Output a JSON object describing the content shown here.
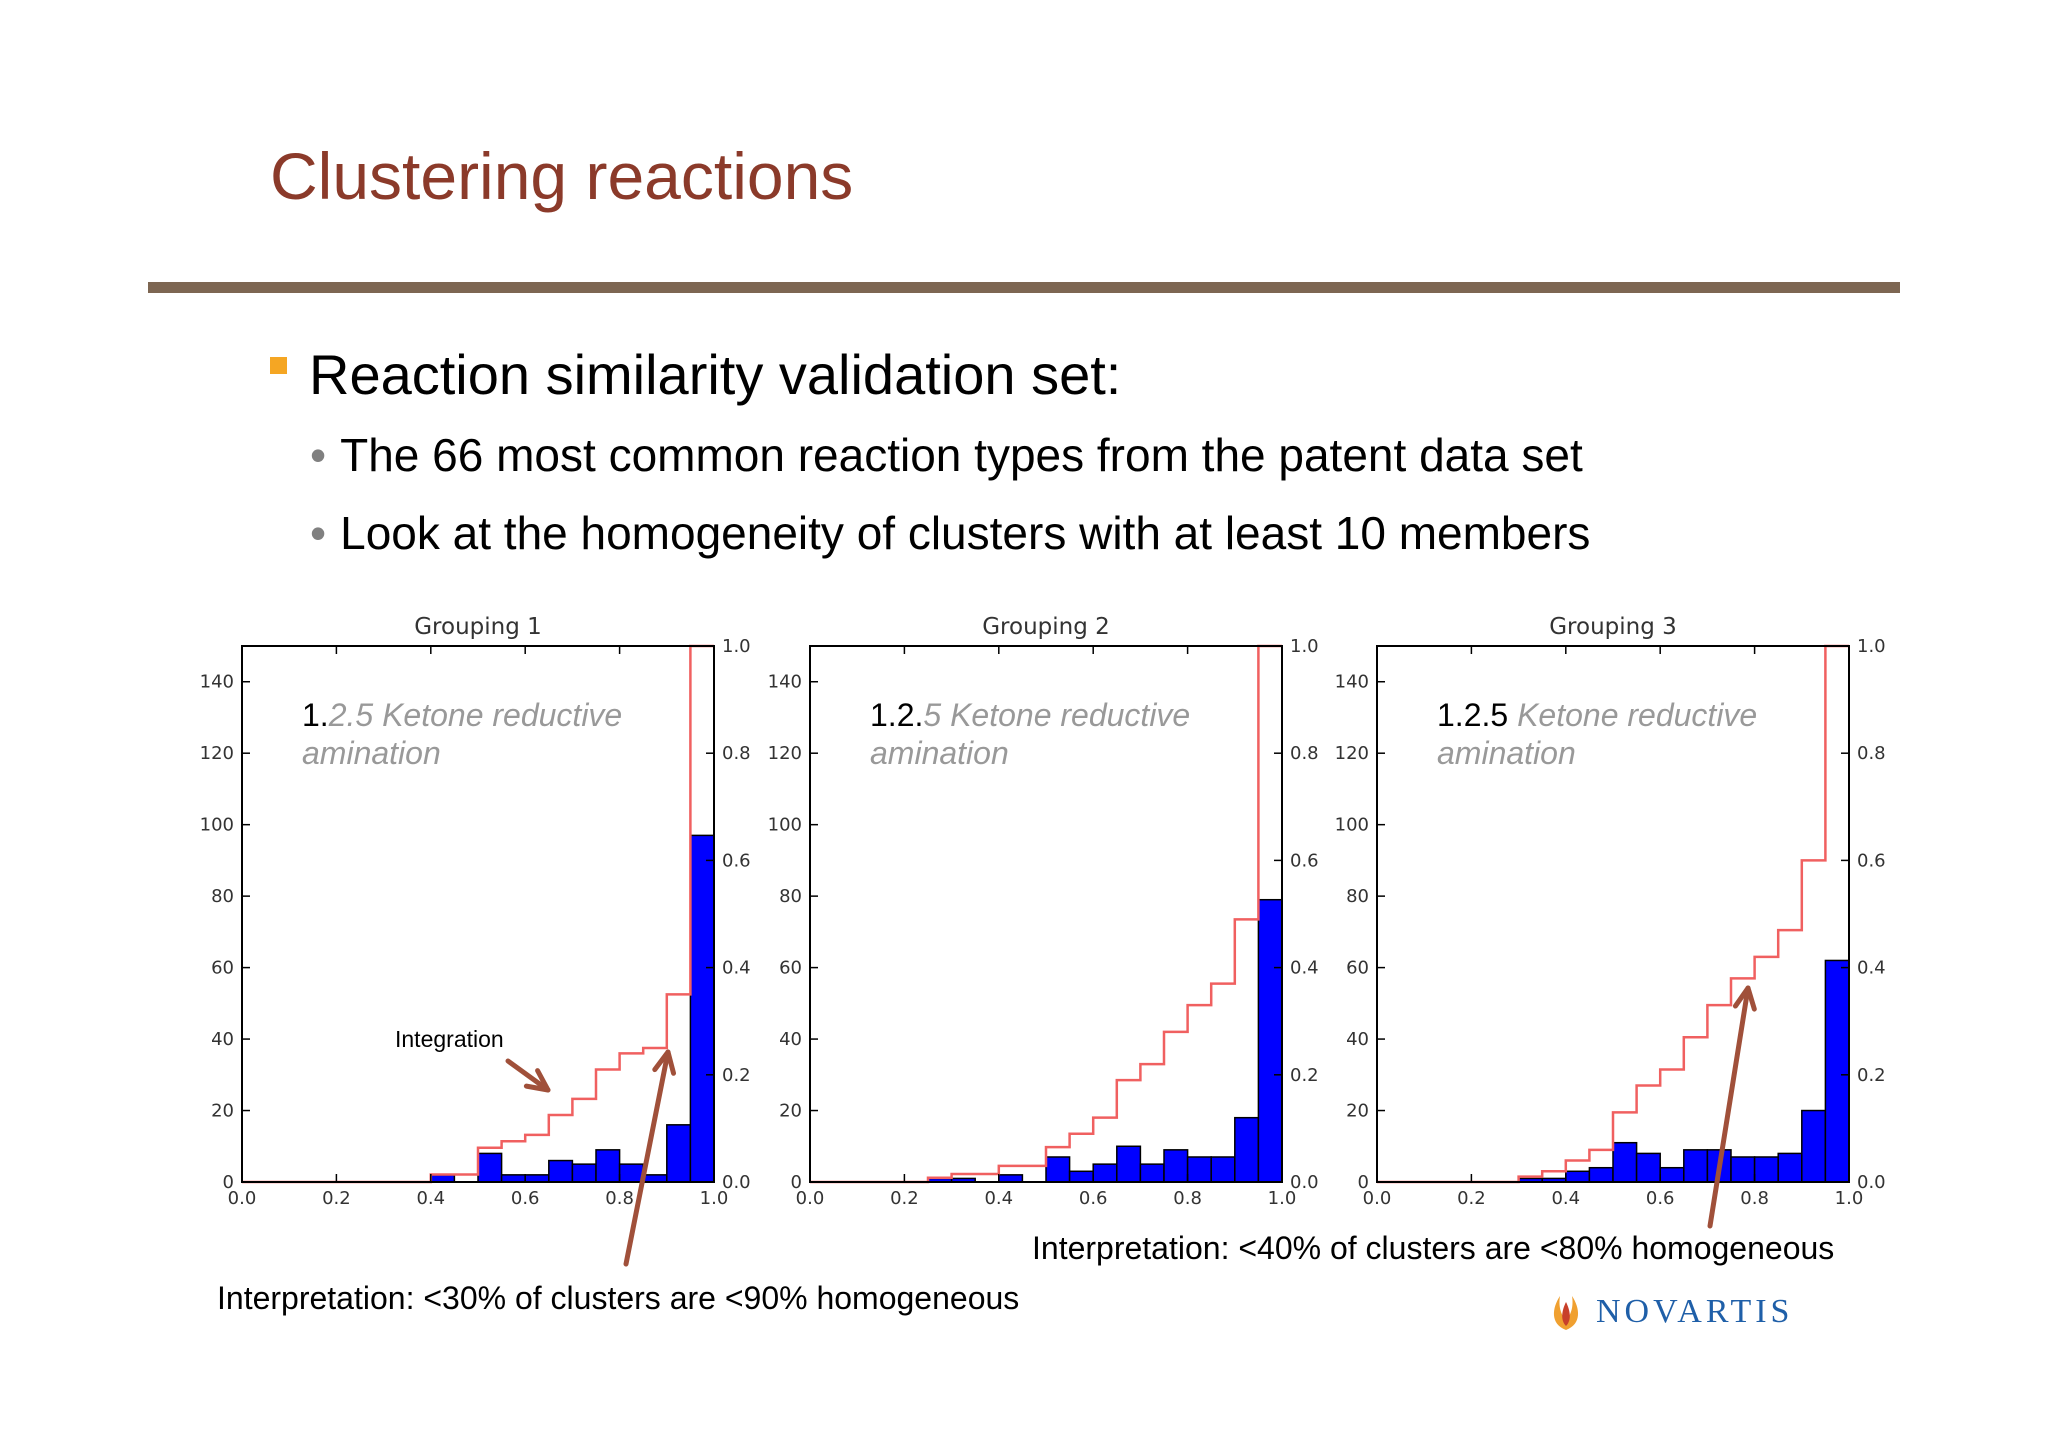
{
  "slide": {
    "title": "Clustering reactions",
    "bullet": "Reaction similarity validation set:",
    "sub_bullets": [
      "The 66 most common reaction types from the patent data set",
      "Look at the homogeneity of clusters with at least 10 members"
    ],
    "interpretation_1": "Interpretation: <30% of clusters are <90% homogeneous",
    "interpretation_2": "Interpretation: <40% of clusters are <80% homogeneous",
    "logo_text": "NOVARTIS",
    "colors": {
      "title": "#8b3a2a",
      "rule": "#7d6652",
      "bullet": "#f5a623",
      "arrow": "#a0503a",
      "logo": "#1f5fa8"
    }
  },
  "chart_data": [
    {
      "type": "bar",
      "title": "Grouping 1",
      "overlay_prefix": "1.",
      "overlay_rest": "2.5 Ketone reductive",
      "overlay_line2": "amination",
      "annotation": "Integration",
      "bin_edges": [
        0.0,
        0.05,
        0.1,
        0.15,
        0.2,
        0.25,
        0.3,
        0.35,
        0.4,
        0.45,
        0.5,
        0.55,
        0.6,
        0.65,
        0.7,
        0.75,
        0.8,
        0.85,
        0.9,
        0.95,
        1.0
      ],
      "histogram": [
        0,
        0,
        0,
        0,
        0,
        0,
        0,
        0,
        2,
        0,
        8,
        2,
        2,
        6,
        5,
        9,
        5,
        2,
        16,
        97
      ],
      "cumulative": [
        0,
        0,
        0,
        0,
        0,
        0,
        0,
        0,
        0.014,
        0.014,
        0.064,
        0.076,
        0.088,
        0.125,
        0.155,
        0.21,
        0.24,
        0.25,
        0.35,
        1.0
      ],
      "xlim": [
        0,
        1
      ],
      "ylim_left": [
        0,
        150
      ],
      "ylim_right": [
        0,
        1.0
      ],
      "x_ticks": [
        "0.0",
        "0.2",
        "0.4",
        "0.6",
        "0.8",
        "1.0"
      ],
      "y_ticks_left": [
        "0",
        "20",
        "40",
        "60",
        "80",
        "100",
        "120",
        "140"
      ],
      "y_ticks_right": [
        "0.0",
        "0.2",
        "0.4",
        "0.6",
        "0.8",
        "1.0"
      ],
      "bar_color": "#0000ff",
      "line_color": "#f06060"
    },
    {
      "type": "bar",
      "title": "Grouping 2",
      "overlay_prefix": "1.2.",
      "overlay_rest": "5 Ketone reductive",
      "overlay_line2": "amination",
      "bin_edges": [
        0.0,
        0.05,
        0.1,
        0.15,
        0.2,
        0.25,
        0.3,
        0.35,
        0.4,
        0.45,
        0.5,
        0.55,
        0.6,
        0.65,
        0.7,
        0.75,
        0.8,
        0.85,
        0.9,
        0.95,
        1.0
      ],
      "histogram": [
        0,
        0,
        0,
        0,
        0,
        1,
        1,
        0,
        2,
        0,
        7,
        3,
        5,
        10,
        5,
        9,
        7,
        7,
        18,
        79
      ],
      "cumulative": [
        0,
        0,
        0,
        0,
        0,
        0.008,
        0.015,
        0.015,
        0.03,
        0.03,
        0.065,
        0.09,
        0.12,
        0.19,
        0.22,
        0.28,
        0.33,
        0.37,
        0.49,
        1.0
      ],
      "xlim": [
        0,
        1
      ],
      "ylim_left": [
        0,
        150
      ],
      "ylim_right": [
        0,
        1.0
      ],
      "x_ticks": [
        "0.0",
        "0.2",
        "0.4",
        "0.6",
        "0.8",
        "1.0"
      ],
      "y_ticks_left": [
        "0",
        "20",
        "40",
        "60",
        "80",
        "100",
        "120",
        "140"
      ],
      "y_ticks_right": [
        "0.0",
        "0.2",
        "0.4",
        "0.6",
        "0.8",
        "1.0"
      ],
      "bar_color": "#0000ff",
      "line_color": "#f06060"
    },
    {
      "type": "bar",
      "title": "Grouping 3",
      "overlay_prefix": "1.2.5 ",
      "overlay_rest": "Ketone reductive",
      "overlay_line2": "amination",
      "bin_edges": [
        0.0,
        0.05,
        0.1,
        0.15,
        0.2,
        0.25,
        0.3,
        0.35,
        0.4,
        0.45,
        0.5,
        0.55,
        0.6,
        0.65,
        0.7,
        0.75,
        0.8,
        0.85,
        0.9,
        0.95,
        1.0
      ],
      "histogram": [
        0,
        0,
        0,
        0,
        0,
        0,
        1,
        1,
        3,
        4,
        11,
        8,
        4,
        9,
        9,
        7,
        7,
        8,
        20,
        62
      ],
      "cumulative": [
        0,
        0,
        0,
        0,
        0,
        0,
        0.01,
        0.02,
        0.04,
        0.06,
        0.13,
        0.18,
        0.21,
        0.27,
        0.33,
        0.38,
        0.42,
        0.47,
        0.6,
        1.0
      ],
      "xlim": [
        0,
        1
      ],
      "ylim_left": [
        0,
        150
      ],
      "ylim_right": [
        0,
        1.0
      ],
      "x_ticks": [
        "0.0",
        "0.2",
        "0.4",
        "0.6",
        "0.8",
        "1.0"
      ],
      "y_ticks_left": [
        "0",
        "20",
        "40",
        "60",
        "80",
        "100",
        "120",
        "140"
      ],
      "y_ticks_right": [
        "0.0",
        "0.2",
        "0.4",
        "0.6",
        "0.8",
        "1.0"
      ],
      "bar_color": "#0000ff",
      "line_color": "#f06060"
    }
  ]
}
